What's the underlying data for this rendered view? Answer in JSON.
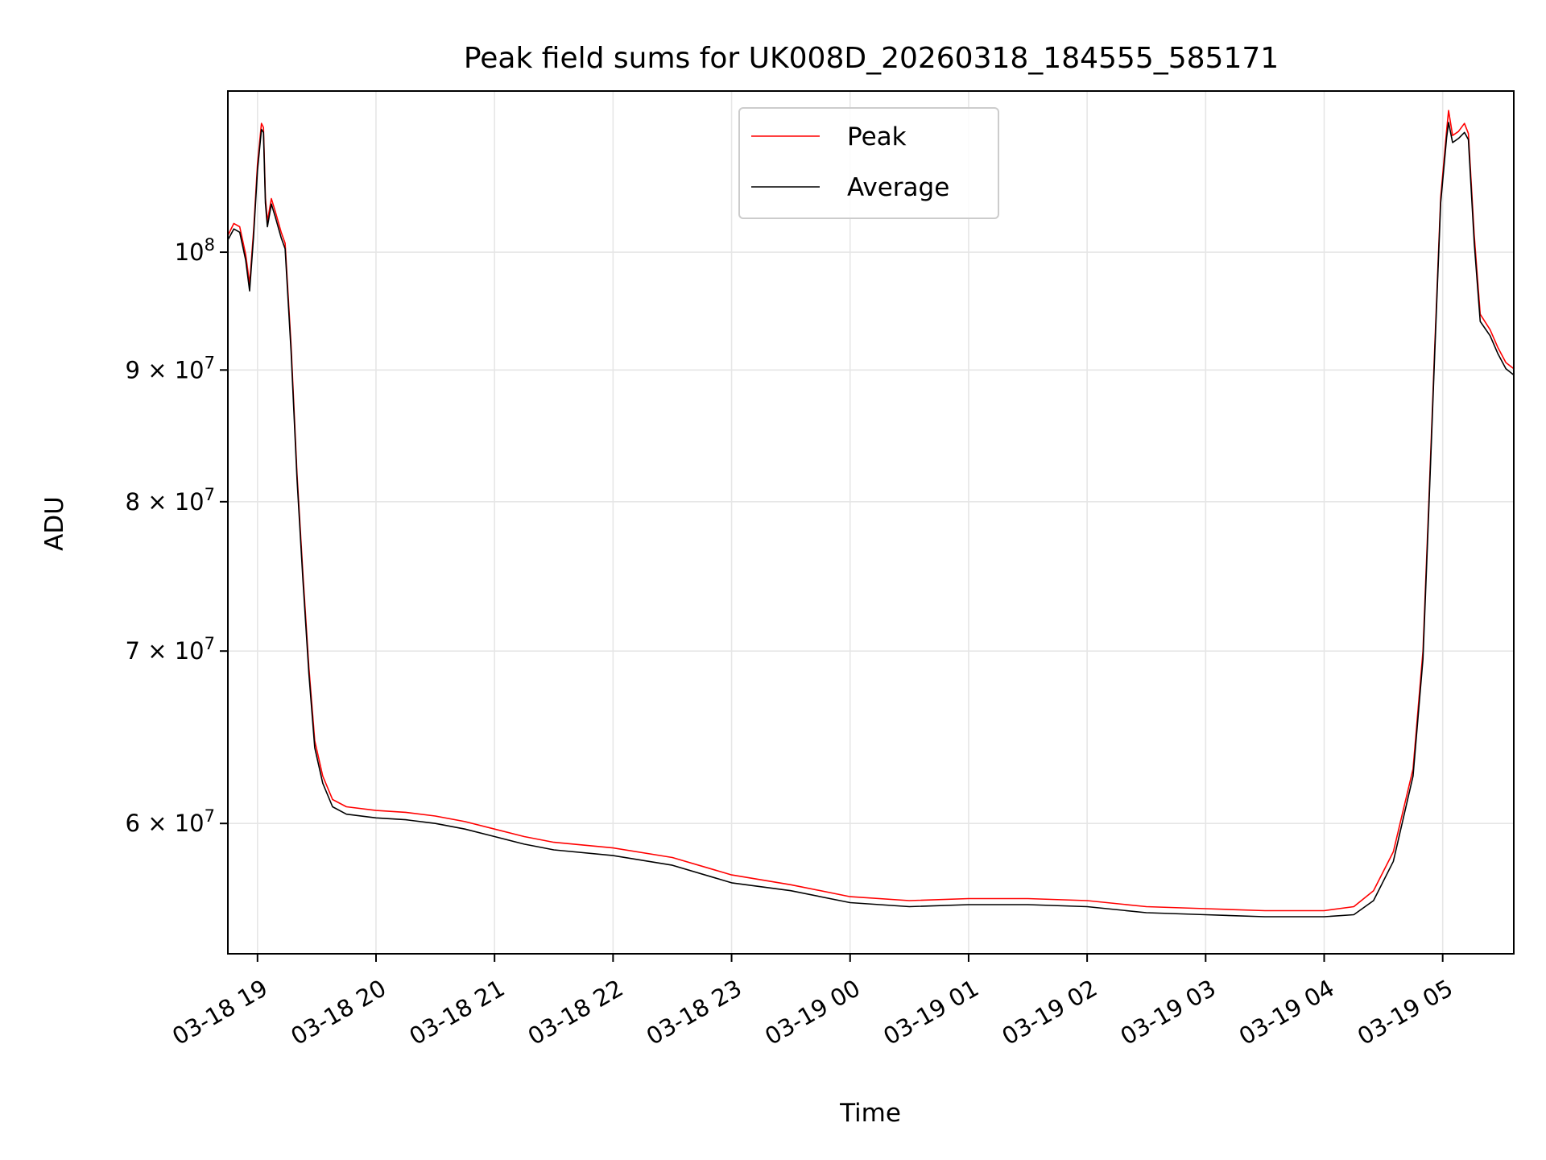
{
  "chart_data": {
    "type": "line",
    "title": "Peak field sums for UK008D_20260318_184555_585171",
    "xlabel": "Time",
    "ylabel": "ADU",
    "yscale": "log",
    "ylim": [
      53400000,
      115500000
    ],
    "xlim": [
      "2026-03-18 18:45",
      "2026-03-19 05:36"
    ],
    "grid": true,
    "legend_position": "top-center",
    "x_ticks": [
      {
        "t": "2026-03-18 19:00",
        "label": "03-18 19"
      },
      {
        "t": "2026-03-18 20:00",
        "label": "03-18 20"
      },
      {
        "t": "2026-03-18 21:00",
        "label": "03-18 21"
      },
      {
        "t": "2026-03-18 22:00",
        "label": "03-18 22"
      },
      {
        "t": "2026-03-18 23:00",
        "label": "03-18 23"
      },
      {
        "t": "2026-03-19 00:00",
        "label": "03-19 00"
      },
      {
        "t": "2026-03-19 01:00",
        "label": "03-19 01"
      },
      {
        "t": "2026-03-19 02:00",
        "label": "03-19 02"
      },
      {
        "t": "2026-03-19 03:00",
        "label": "03-19 03"
      },
      {
        "t": "2026-03-19 04:00",
        "label": "03-19 04"
      },
      {
        "t": "2026-03-19 05:00",
        "label": "03-19 05"
      }
    ],
    "y_ticks": [
      {
        "value": 100000000,
        "mantissa": "10",
        "exponent": "8"
      },
      {
        "value": 90000000,
        "mantissa": "9 × 10",
        "exponent": "7"
      },
      {
        "value": 80000000,
        "mantissa": "8 × 10",
        "exponent": "7"
      },
      {
        "value": 70000000,
        "mantissa": "7 × 10",
        "exponent": "7"
      },
      {
        "value": 60000000,
        "mantissa": "6 × 10",
        "exponent": "7"
      }
    ],
    "series": [
      {
        "name": "Peak",
        "color": "#ff0000",
        "points": [
          [
            "2026-03-18 18:45",
            101500000
          ],
          [
            "2026-03-18 18:48",
            102600000
          ],
          [
            "2026-03-18 18:51",
            102300000
          ],
          [
            "2026-03-18 18:54",
            99800000
          ],
          [
            "2026-03-18 18:56",
            97200000
          ],
          [
            "2026-03-18 18:58",
            101900000
          ],
          [
            "2026-03-18 19:00",
            108200000
          ],
          [
            "2026-03-18 19:02",
            112200000
          ],
          [
            "2026-03-18 19:03",
            111800000
          ],
          [
            "2026-03-18 19:04",
            105000000
          ],
          [
            "2026-03-18 19:05",
            102800000
          ],
          [
            "2026-03-18 19:07",
            104900000
          ],
          [
            "2026-03-18 19:09",
            103700000
          ],
          [
            "2026-03-18 19:12",
            101800000
          ],
          [
            "2026-03-18 19:14",
            100800000
          ],
          [
            "2026-03-18 19:17",
            92000000
          ],
          [
            "2026-03-18 19:20",
            82000000
          ],
          [
            "2026-03-18 19:23",
            75000000
          ],
          [
            "2026-03-18 19:26",
            69000000
          ],
          [
            "2026-03-18 19:29",
            64600000
          ],
          [
            "2026-03-18 19:33",
            62600000
          ],
          [
            "2026-03-18 19:38",
            61300000
          ],
          [
            "2026-03-18 19:45",
            60900000
          ],
          [
            "2026-03-18 20:00",
            60700000
          ],
          [
            "2026-03-18 20:15",
            60600000
          ],
          [
            "2026-03-18 20:30",
            60400000
          ],
          [
            "2026-03-18 20:45",
            60100000
          ],
          [
            "2026-03-18 21:00",
            59700000
          ],
          [
            "2026-03-18 21:15",
            59300000
          ],
          [
            "2026-03-18 21:30",
            59000000
          ],
          [
            "2026-03-18 22:00",
            58700000
          ],
          [
            "2026-03-18 22:30",
            58200000
          ],
          [
            "2026-03-18 23:00",
            57300000
          ],
          [
            "2026-03-18 23:30",
            56800000
          ],
          [
            "2026-03-19 00:00",
            56200000
          ],
          [
            "2026-03-19 00:30",
            56000000
          ],
          [
            "2026-03-19 01:00",
            56100000
          ],
          [
            "2026-03-19 01:30",
            56100000
          ],
          [
            "2026-03-19 02:00",
            56000000
          ],
          [
            "2026-03-19 02:30",
            55700000
          ],
          [
            "2026-03-19 03:00",
            55600000
          ],
          [
            "2026-03-19 03:30",
            55500000
          ],
          [
            "2026-03-19 04:00",
            55500000
          ],
          [
            "2026-03-19 04:15",
            55700000
          ],
          [
            "2026-03-19 04:25",
            56500000
          ],
          [
            "2026-03-19 04:35",
            58500000
          ],
          [
            "2026-03-19 04:45",
            63000000
          ],
          [
            "2026-03-19 04:50",
            70000000
          ],
          [
            "2026-03-19 04:53",
            80000000
          ],
          [
            "2026-03-19 04:56",
            92000000
          ],
          [
            "2026-03-19 04:59",
            105000000
          ],
          [
            "2026-03-19 05:02",
            111500000
          ],
          [
            "2026-03-19 05:03",
            113500000
          ],
          [
            "2026-03-19 05:05",
            111000000
          ],
          [
            "2026-03-19 05:08",
            111400000
          ],
          [
            "2026-03-19 05:11",
            112200000
          ],
          [
            "2026-03-19 05:13",
            111200000
          ],
          [
            "2026-03-19 05:16",
            101500000
          ],
          [
            "2026-03-19 05:19",
            94600000
          ],
          [
            "2026-03-19 05:24",
            93300000
          ],
          [
            "2026-03-19 05:28",
            91800000
          ],
          [
            "2026-03-19 05:32",
            90600000
          ],
          [
            "2026-03-19 05:36",
            90100000
          ]
        ]
      },
      {
        "name": "Average",
        "color": "#000000",
        "points": [
          [
            "2026-03-18 18:45",
            101100000
          ],
          [
            "2026-03-18 18:48",
            102100000
          ],
          [
            "2026-03-18 18:51",
            101800000
          ],
          [
            "2026-03-18 18:54",
            99300000
          ],
          [
            "2026-03-18 18:56",
            96600000
          ],
          [
            "2026-03-18 18:58",
            101400000
          ],
          [
            "2026-03-18 19:00",
            107600000
          ],
          [
            "2026-03-18 19:02",
            111600000
          ],
          [
            "2026-03-18 19:03",
            111300000
          ],
          [
            "2026-03-18 19:04",
            104500000
          ],
          [
            "2026-03-18 19:05",
            102300000
          ],
          [
            "2026-03-18 19:07",
            104400000
          ],
          [
            "2026-03-18 19:09",
            103200000
          ],
          [
            "2026-03-18 19:12",
            101300000
          ],
          [
            "2026-03-18 19:14",
            100300000
          ],
          [
            "2026-03-18 19:17",
            91500000
          ],
          [
            "2026-03-18 19:20",
            81600000
          ],
          [
            "2026-03-18 19:23",
            74600000
          ],
          [
            "2026-03-18 19:26",
            68600000
          ],
          [
            "2026-03-18 19:29",
            64200000
          ],
          [
            "2026-03-18 19:33",
            62200000
          ],
          [
            "2026-03-18 19:38",
            60900000
          ],
          [
            "2026-03-18 19:45",
            60500000
          ],
          [
            "2026-03-18 20:00",
            60300000
          ],
          [
            "2026-03-18 20:15",
            60200000
          ],
          [
            "2026-03-18 20:30",
            60000000
          ],
          [
            "2026-03-18 20:45",
            59700000
          ],
          [
            "2026-03-18 21:00",
            59300000
          ],
          [
            "2026-03-18 21:15",
            58900000
          ],
          [
            "2026-03-18 21:30",
            58600000
          ],
          [
            "2026-03-18 22:00",
            58300000
          ],
          [
            "2026-03-18 22:30",
            57800000
          ],
          [
            "2026-03-18 23:00",
            56900000
          ],
          [
            "2026-03-18 23:30",
            56500000
          ],
          [
            "2026-03-19 00:00",
            55900000
          ],
          [
            "2026-03-19 00:30",
            55700000
          ],
          [
            "2026-03-19 01:00",
            55800000
          ],
          [
            "2026-03-19 01:30",
            55800000
          ],
          [
            "2026-03-19 02:00",
            55700000
          ],
          [
            "2026-03-19 02:30",
            55400000
          ],
          [
            "2026-03-19 03:00",
            55300000
          ],
          [
            "2026-03-19 03:30",
            55200000
          ],
          [
            "2026-03-19 04:00",
            55200000
          ],
          [
            "2026-03-19 04:15",
            55300000
          ],
          [
            "2026-03-19 04:25",
            56000000
          ],
          [
            "2026-03-19 04:35",
            58000000
          ],
          [
            "2026-03-19 04:45",
            62600000
          ],
          [
            "2026-03-19 04:50",
            69500000
          ],
          [
            "2026-03-19 04:53",
            79500000
          ],
          [
            "2026-03-19 04:56",
            91500000
          ],
          [
            "2026-03-19 04:59",
            104500000
          ],
          [
            "2026-03-19 05:02",
            110800000
          ],
          [
            "2026-03-19 05:03",
            112300000
          ],
          [
            "2026-03-19 05:05",
            110300000
          ],
          [
            "2026-03-19 05:08",
            110700000
          ],
          [
            "2026-03-19 05:11",
            111300000
          ],
          [
            "2026-03-19 05:13",
            110600000
          ],
          [
            "2026-03-19 05:16",
            100800000
          ],
          [
            "2026-03-19 05:19",
            94000000
          ],
          [
            "2026-03-19 05:24",
            92800000
          ],
          [
            "2026-03-19 05:28",
            91300000
          ],
          [
            "2026-03-19 05:32",
            90100000
          ],
          [
            "2026-03-19 05:36",
            89600000
          ]
        ]
      }
    ]
  }
}
